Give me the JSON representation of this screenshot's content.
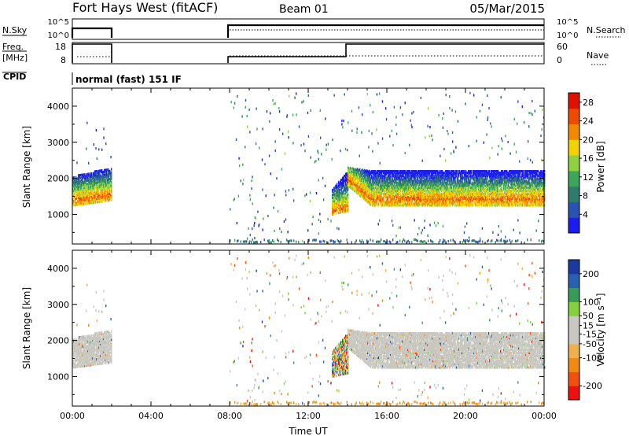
{
  "header": {
    "station": "Fort Hays West (fitACF)",
    "beam": "Beam 01",
    "date": "05/Mar/2015"
  },
  "info_strip": {
    "nsky_label": "N.Sky",
    "nsky_ticks": [
      "10^5",
      "10^0"
    ],
    "nsearch_label": "N.Search",
    "nsearch_ticks": [
      "10^5",
      "10^0"
    ],
    "freq_label_line1": "Freq.",
    "freq_label_line2": "[MHz]",
    "freq_ticks": [
      "18",
      "8"
    ],
    "nave_label": "Nave",
    "nave_ticks": [
      "60",
      "0"
    ],
    "cpid_label": "CPID",
    "cpid_text": "normal (fast) 151 IF"
  },
  "colors": {
    "power_scale": [
      "#1c1cf0",
      "#2a52b0",
      "#2f7c6e",
      "#3ea65a",
      "#8fd13f",
      "#f2d200",
      "#f28a00",
      "#ee4a00",
      "#e01000"
    ],
    "velocity_scale": [
      "#ee1010",
      "#f25010",
      "#f08a10",
      "#f0b050",
      "#c8c8c0",
      "#c8c8c0",
      "#84d040",
      "#3a9a5a",
      "#2a60b0",
      "#1a3aa0"
    ],
    "ground_scatter": "#c8c8c0"
  },
  "chart_data": [
    {
      "type": "heatmap",
      "panel": "power",
      "ylabel": "Slant Range [km]",
      "ylim": [
        180,
        4500
      ],
      "xlim_hours": [
        0,
        24
      ],
      "x_ticks": [
        "00:00",
        "04:00",
        "08:00",
        "12:00",
        "16:00",
        "20:00",
        "00:00"
      ],
      "y_ticks": [
        1000,
        2000,
        3000,
        4000
      ],
      "colorbar_label": "Power [dB]",
      "colorbar_ticks": [
        4,
        8,
        12,
        16,
        20,
        24,
        28
      ],
      "colorbar_range": [
        0,
        30
      ],
      "scatter_regions": [
        {
          "t_start": 0.0,
          "t_end": 2.0,
          "range_low": 1250,
          "range_high": 2200,
          "peak_range": 1450
        },
        {
          "t_start": 13.2,
          "t_end": 14.0,
          "range_low": 1000,
          "range_high": 1900,
          "peak_range": 1100
        },
        {
          "t_start": 14.0,
          "t_end": 24.0,
          "range_low": 1250,
          "range_high": 2200,
          "peak_range": 1450
        }
      ]
    },
    {
      "type": "heatmap",
      "panel": "velocity",
      "xlabel": "Time UT",
      "ylabel": "Slant Range [km]",
      "ylim": [
        180,
        4500
      ],
      "xlim_hours": [
        0,
        24
      ],
      "x_ticks": [
        "00:00",
        "04:00",
        "08:00",
        "12:00",
        "16:00",
        "20:00",
        "00:00"
      ],
      "y_ticks": [
        1000,
        2000,
        3000,
        4000
      ],
      "colorbar_label": "Velocity [m s⁻¹]",
      "colorbar_ticks": [
        200,
        100,
        50,
        15,
        -15,
        -50,
        -100,
        -200
      ],
      "colorbar_range": [
        -250,
        250
      ]
    }
  ]
}
